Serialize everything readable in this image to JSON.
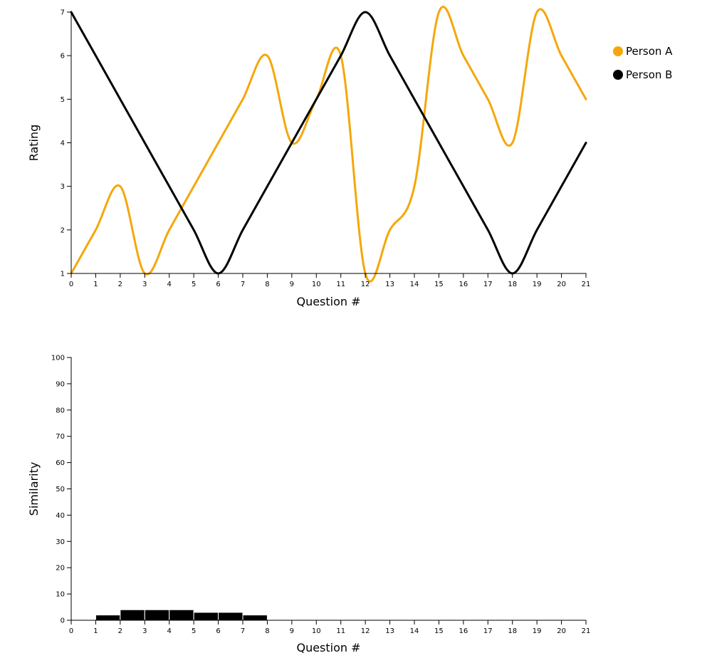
{
  "chart_data": [
    {
      "type": "line",
      "xlabel": "Question #",
      "ylabel": "Rating",
      "xlim": [
        0,
        21
      ],
      "ylim": [
        1,
        7
      ],
      "x": [
        0,
        1,
        2,
        3,
        4,
        5,
        6,
        7,
        8,
        9,
        10,
        11,
        12,
        13,
        14,
        15,
        16,
        17,
        18,
        19,
        20,
        21
      ],
      "yticks": [
        1,
        2,
        3,
        4,
        5,
        6,
        7
      ],
      "grid": false,
      "legend_position": "top-right",
      "series": [
        {
          "name": "Person A",
          "color": "#f5a70a",
          "values": [
            1,
            2,
            3,
            1,
            2,
            3,
            4,
            5,
            6,
            4,
            5,
            6,
            1,
            2,
            3,
            7,
            6,
            5,
            4,
            7,
            6,
            5
          ]
        },
        {
          "name": "Person B",
          "color": "#000000",
          "values": [
            7,
            6,
            5,
            4,
            3,
            2,
            1,
            2,
            3,
            4,
            5,
            6,
            7,
            6,
            5,
            4,
            3,
            2,
            1,
            2,
            3,
            4
          ]
        }
      ]
    },
    {
      "type": "bar",
      "xlabel": "Question #",
      "ylabel": "Similarity",
      "xlim": [
        0,
        21
      ],
      "ylim": [
        0,
        100
      ],
      "x": [
        0,
        1,
        2,
        3,
        4,
        5,
        6,
        7,
        8,
        9,
        10,
        11,
        12,
        13,
        14,
        15,
        16,
        17,
        18,
        19,
        20,
        21
      ],
      "yticks": [
        0,
        10,
        20,
        30,
        40,
        50,
        60,
        70,
        80,
        90,
        100
      ],
      "grid": false,
      "bar_color": "#000000",
      "bars": [
        {
          "x0": 1,
          "x1": 2,
          "value": 2
        },
        {
          "x0": 2,
          "x1": 3,
          "value": 4
        },
        {
          "x0": 3,
          "x1": 4,
          "value": 4
        },
        {
          "x0": 4,
          "x1": 5,
          "value": 4
        },
        {
          "x0": 5,
          "x1": 6,
          "value": 3
        },
        {
          "x0": 6,
          "x1": 7,
          "value": 3
        },
        {
          "x0": 7,
          "x1": 8,
          "value": 2
        }
      ]
    }
  ]
}
